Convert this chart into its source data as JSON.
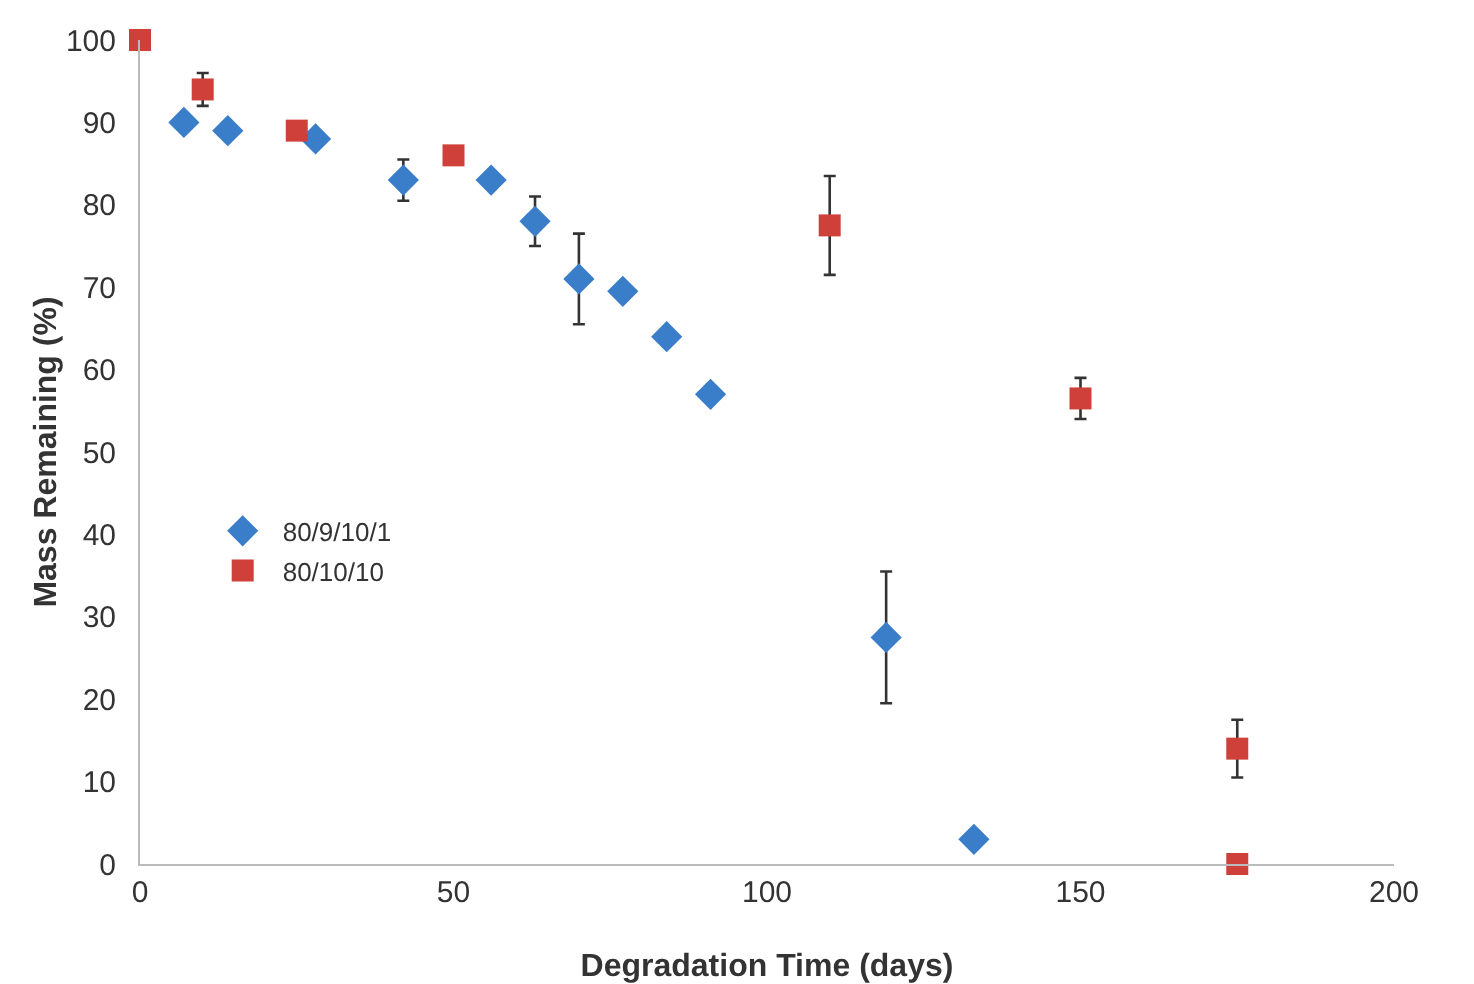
{
  "chart_data": {
    "type": "scatter",
    "xlabel": "Degradation Time (days)",
    "ylabel": "Mass Remaining (%)",
    "xlim": [
      0,
      200
    ],
    "xticks": [
      0,
      50,
      100,
      150,
      200
    ],
    "ylim": [
      0,
      100
    ],
    "yticks": [
      0,
      10,
      20,
      30,
      40,
      50,
      60,
      70,
      80,
      90,
      100
    ],
    "grid": false,
    "legend": "left",
    "series": [
      {
        "name": "80/9/10/1",
        "color": "#3a7dc9",
        "marker": "diamond",
        "x": [
          7,
          14,
          28,
          42,
          56,
          63,
          70,
          77,
          84,
          91,
          119,
          133
        ],
        "values": [
          90,
          89,
          88,
          83,
          83,
          78,
          71,
          69.5,
          64,
          57,
          27.5,
          3
        ],
        "errors": [
          null,
          null,
          null,
          2.5,
          null,
          3,
          5.5,
          null,
          null,
          null,
          8,
          null
        ]
      },
      {
        "name": "80/10/10",
        "color": "#d0403a",
        "marker": "square",
        "x": [
          0,
          10,
          25,
          50,
          110,
          150,
          175,
          175
        ],
        "values": [
          100,
          94,
          89,
          86,
          77.5,
          56.5,
          14,
          0
        ],
        "errors": [
          null,
          2,
          null,
          null,
          6,
          2.5,
          3.5,
          null
        ]
      }
    ]
  }
}
